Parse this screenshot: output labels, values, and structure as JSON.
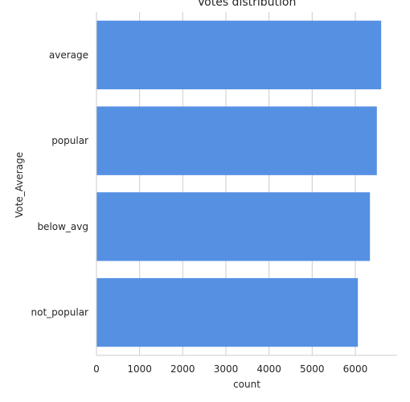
{
  "chart_data": {
    "type": "bar",
    "orientation": "horizontal",
    "title": "Votes distribution",
    "xlabel": "count",
    "ylabel": "Vote_Average",
    "categories": [
      "average",
      "popular",
      "below_avg",
      "not_popular"
    ],
    "values": [
      6600,
      6500,
      6340,
      6060
    ],
    "xlim": [
      0,
      6970
    ],
    "xticks": [
      0,
      1000,
      2000,
      3000,
      4000,
      5000,
      6000
    ],
    "grid": true,
    "bar_color": "#5590e3"
  }
}
